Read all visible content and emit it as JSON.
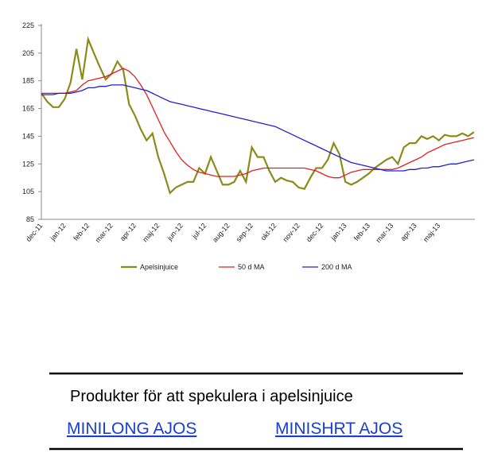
{
  "chart_data": {
    "type": "line",
    "categories": [
      "dec-11",
      null,
      null,
      null,
      "jan-12",
      null,
      null,
      null,
      "feb-12",
      null,
      null,
      null,
      "mar-12",
      null,
      null,
      null,
      "apr-12",
      null,
      null,
      null,
      "maj-12",
      null,
      null,
      null,
      "jun-12",
      null,
      null,
      null,
      "jul-12",
      null,
      null,
      null,
      "aug-12",
      null,
      null,
      null,
      "sep-12",
      null,
      null,
      null,
      "okt-12",
      null,
      null,
      null,
      "nov-12",
      null,
      null,
      null,
      "dec-12",
      null,
      null,
      null,
      "jan-13",
      null,
      null,
      null,
      "feb-13",
      null,
      null,
      null,
      "mar-13",
      null,
      null,
      null,
      "apr-13",
      null,
      null,
      null,
      "maj-13",
      null,
      null,
      null,
      null,
      null,
      null
    ],
    "series": [
      {
        "name": "Apelsinjuice",
        "color": "#8b8b1a",
        "values": [
          176,
          170,
          166,
          166,
          172,
          184,
          208,
          186,
          215,
          205,
          195,
          186,
          190,
          199,
          193,
          168,
          160,
          150,
          142,
          147,
          130,
          118,
          104,
          108,
          110,
          112,
          112,
          122,
          118,
          130,
          120,
          110,
          110,
          112,
          120,
          112,
          137,
          130,
          130,
          120,
          112,
          115,
          113,
          112,
          108,
          107,
          115,
          122,
          122,
          128,
          140,
          132,
          112,
          110,
          112,
          115,
          118,
          122,
          125,
          128,
          130,
          125,
          137,
          140,
          140,
          145,
          143,
          145,
          142,
          146,
          145,
          145,
          147,
          145,
          148
        ]
      },
      {
        "name": "50 d MA",
        "color": "#e02020",
        "values": [
          176,
          176,
          176,
          176,
          176,
          177,
          178,
          182,
          185,
          186,
          187,
          188,
          190,
          192,
          194,
          192,
          188,
          182,
          175,
          166,
          157,
          148,
          141,
          134,
          128,
          124,
          121,
          119,
          118,
          117,
          116,
          116,
          116,
          116,
          117,
          118,
          120,
          121,
          122,
          122,
          122,
          122,
          122,
          122,
          122,
          122,
          121,
          120,
          118,
          116,
          115,
          115,
          117,
          119,
          120,
          121,
          121,
          121,
          121,
          121,
          121,
          122,
          124,
          126,
          128,
          130,
          133,
          135,
          137,
          139,
          140,
          141,
          142,
          143,
          144
        ]
      },
      {
        "name": "200 d MA",
        "color": "#2020d0",
        "values": [
          175,
          175,
          175,
          176,
          176,
          176,
          177,
          178,
          180,
          180,
          181,
          181,
          182,
          182,
          182,
          181,
          180,
          179,
          178,
          176,
          174,
          172,
          170,
          169,
          168,
          167,
          166,
          165,
          164,
          163,
          162,
          161,
          160,
          159,
          158,
          157,
          156,
          155,
          154,
          153,
          152,
          150,
          148,
          146,
          144,
          142,
          140,
          138,
          136,
          134,
          132,
          130,
          128,
          126,
          125,
          124,
          123,
          122,
          121,
          120,
          120,
          120,
          120,
          121,
          121,
          122,
          122,
          123,
          123,
          124,
          125,
          125,
          126,
          127,
          128
        ]
      }
    ],
    "ylim": [
      85,
      225
    ],
    "yticks": [
      85,
      105,
      125,
      145,
      165,
      185,
      205,
      225
    ],
    "grid": false,
    "legend": "bottom"
  },
  "products": {
    "heading": "Produkter för att spekulera i apelsinjuice",
    "links": [
      "MINILONG AJOS",
      "MINISHRT AJOS"
    ]
  }
}
